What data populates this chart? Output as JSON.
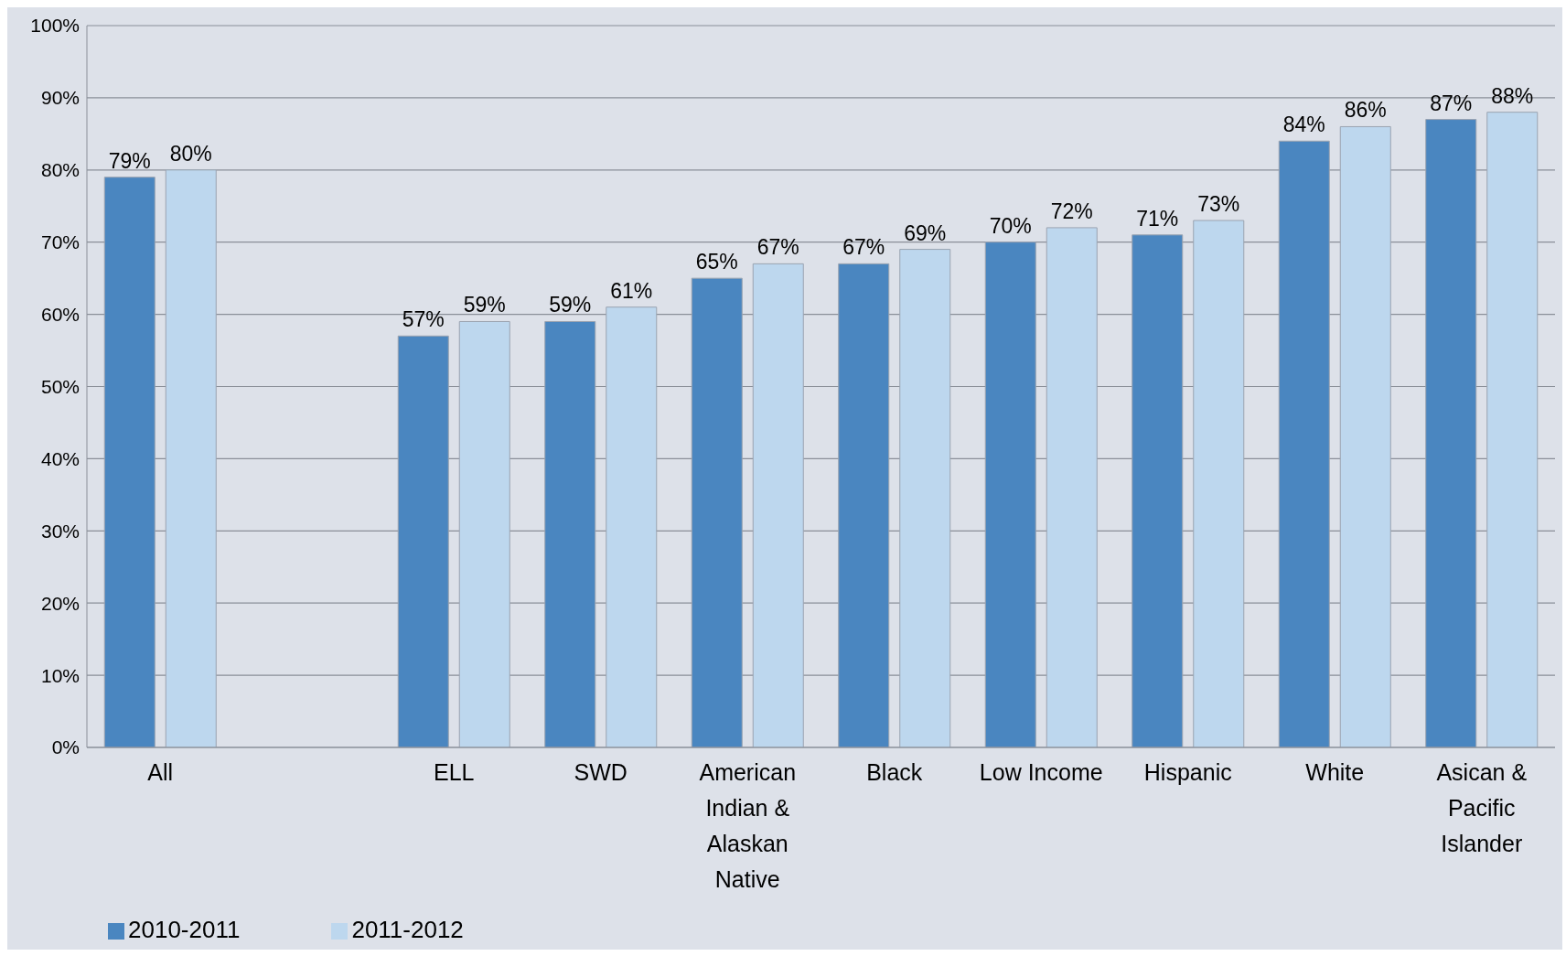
{
  "chart_data": {
    "type": "bar",
    "categories": [
      "All",
      null,
      "ELL",
      "SWD",
      "American Indian & Alaskan Native",
      "Black",
      "Low Income",
      "Hispanic",
      "White",
      "Asican & Pacific Islander"
    ],
    "series": [
      {
        "name": "2010-2011",
        "color": "#4a86c0",
        "values": [
          79,
          null,
          57,
          59,
          65,
          67,
          70,
          71,
          84,
          87
        ],
        "value_labels": [
          "79%",
          null,
          "57%",
          "59%",
          "65%",
          "67%",
          "70%",
          "71%",
          "84%",
          "87%"
        ]
      },
      {
        "name": "2011-2012",
        "color": "#bdd7ee",
        "values": [
          80,
          null,
          59,
          61,
          67,
          69,
          72,
          73,
          86,
          88
        ],
        "value_labels": [
          "80%",
          null,
          "59%",
          "61%",
          "67%",
          "69%",
          "72%",
          "73%",
          "86%",
          "88%"
        ]
      }
    ],
    "ylim": [
      0,
      100
    ],
    "yticks": [
      {
        "value": 0,
        "label": "0%"
      },
      {
        "value": 10,
        "label": "10%"
      },
      {
        "value": 20,
        "label": "20%"
      },
      {
        "value": 30,
        "label": "30%"
      },
      {
        "value": 40,
        "label": "40%"
      },
      {
        "value": 50,
        "label": "50%"
      },
      {
        "value": 60,
        "label": "60%"
      },
      {
        "value": 70,
        "label": "70%"
      },
      {
        "value": 80,
        "label": "80%"
      },
      {
        "value": 90,
        "label": "90%"
      },
      {
        "value": 100,
        "label": "100%"
      }
    ],
    "grid": "y",
    "legend": "bottom left"
  }
}
